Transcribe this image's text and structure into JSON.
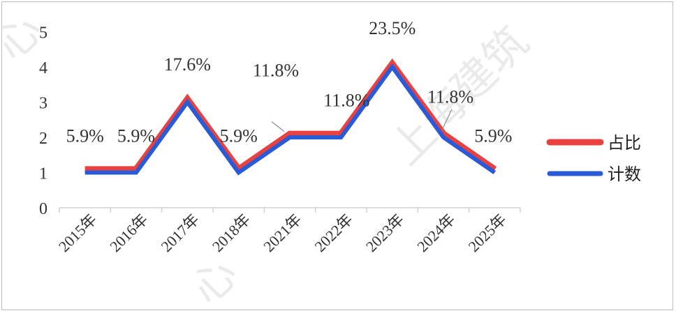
{
  "chart_data": {
    "type": "line",
    "categories": [
      "2015年",
      "2016年",
      "2017年",
      "2018年",
      "2021年",
      "2022年",
      "2023年",
      "2024年",
      "2025年"
    ],
    "series": [
      {
        "name": "占比",
        "color": "#e8413f",
        "values": [
          5.9,
          5.9,
          17.6,
          5.9,
          11.8,
          11.8,
          23.5,
          11.8,
          5.9
        ],
        "labels": [
          "5.9%",
          "5.9%",
          "17.6%",
          "5.9%",
          "11.8%",
          "11.8%",
          "23.5%",
          "11.8%",
          "5.9%"
        ]
      },
      {
        "name": "计数",
        "color": "#2a5bd7",
        "values": [
          1,
          1,
          3,
          1,
          2,
          2,
          4,
          2,
          1
        ]
      }
    ],
    "yticks": [
      "0",
      "1",
      "2",
      "3",
      "4",
      "5"
    ],
    "ylim": [
      0,
      5
    ],
    "grid": false,
    "legend_position": "right"
  },
  "watermarks": [
    "心",
    "上海建筑",
    "心"
  ]
}
